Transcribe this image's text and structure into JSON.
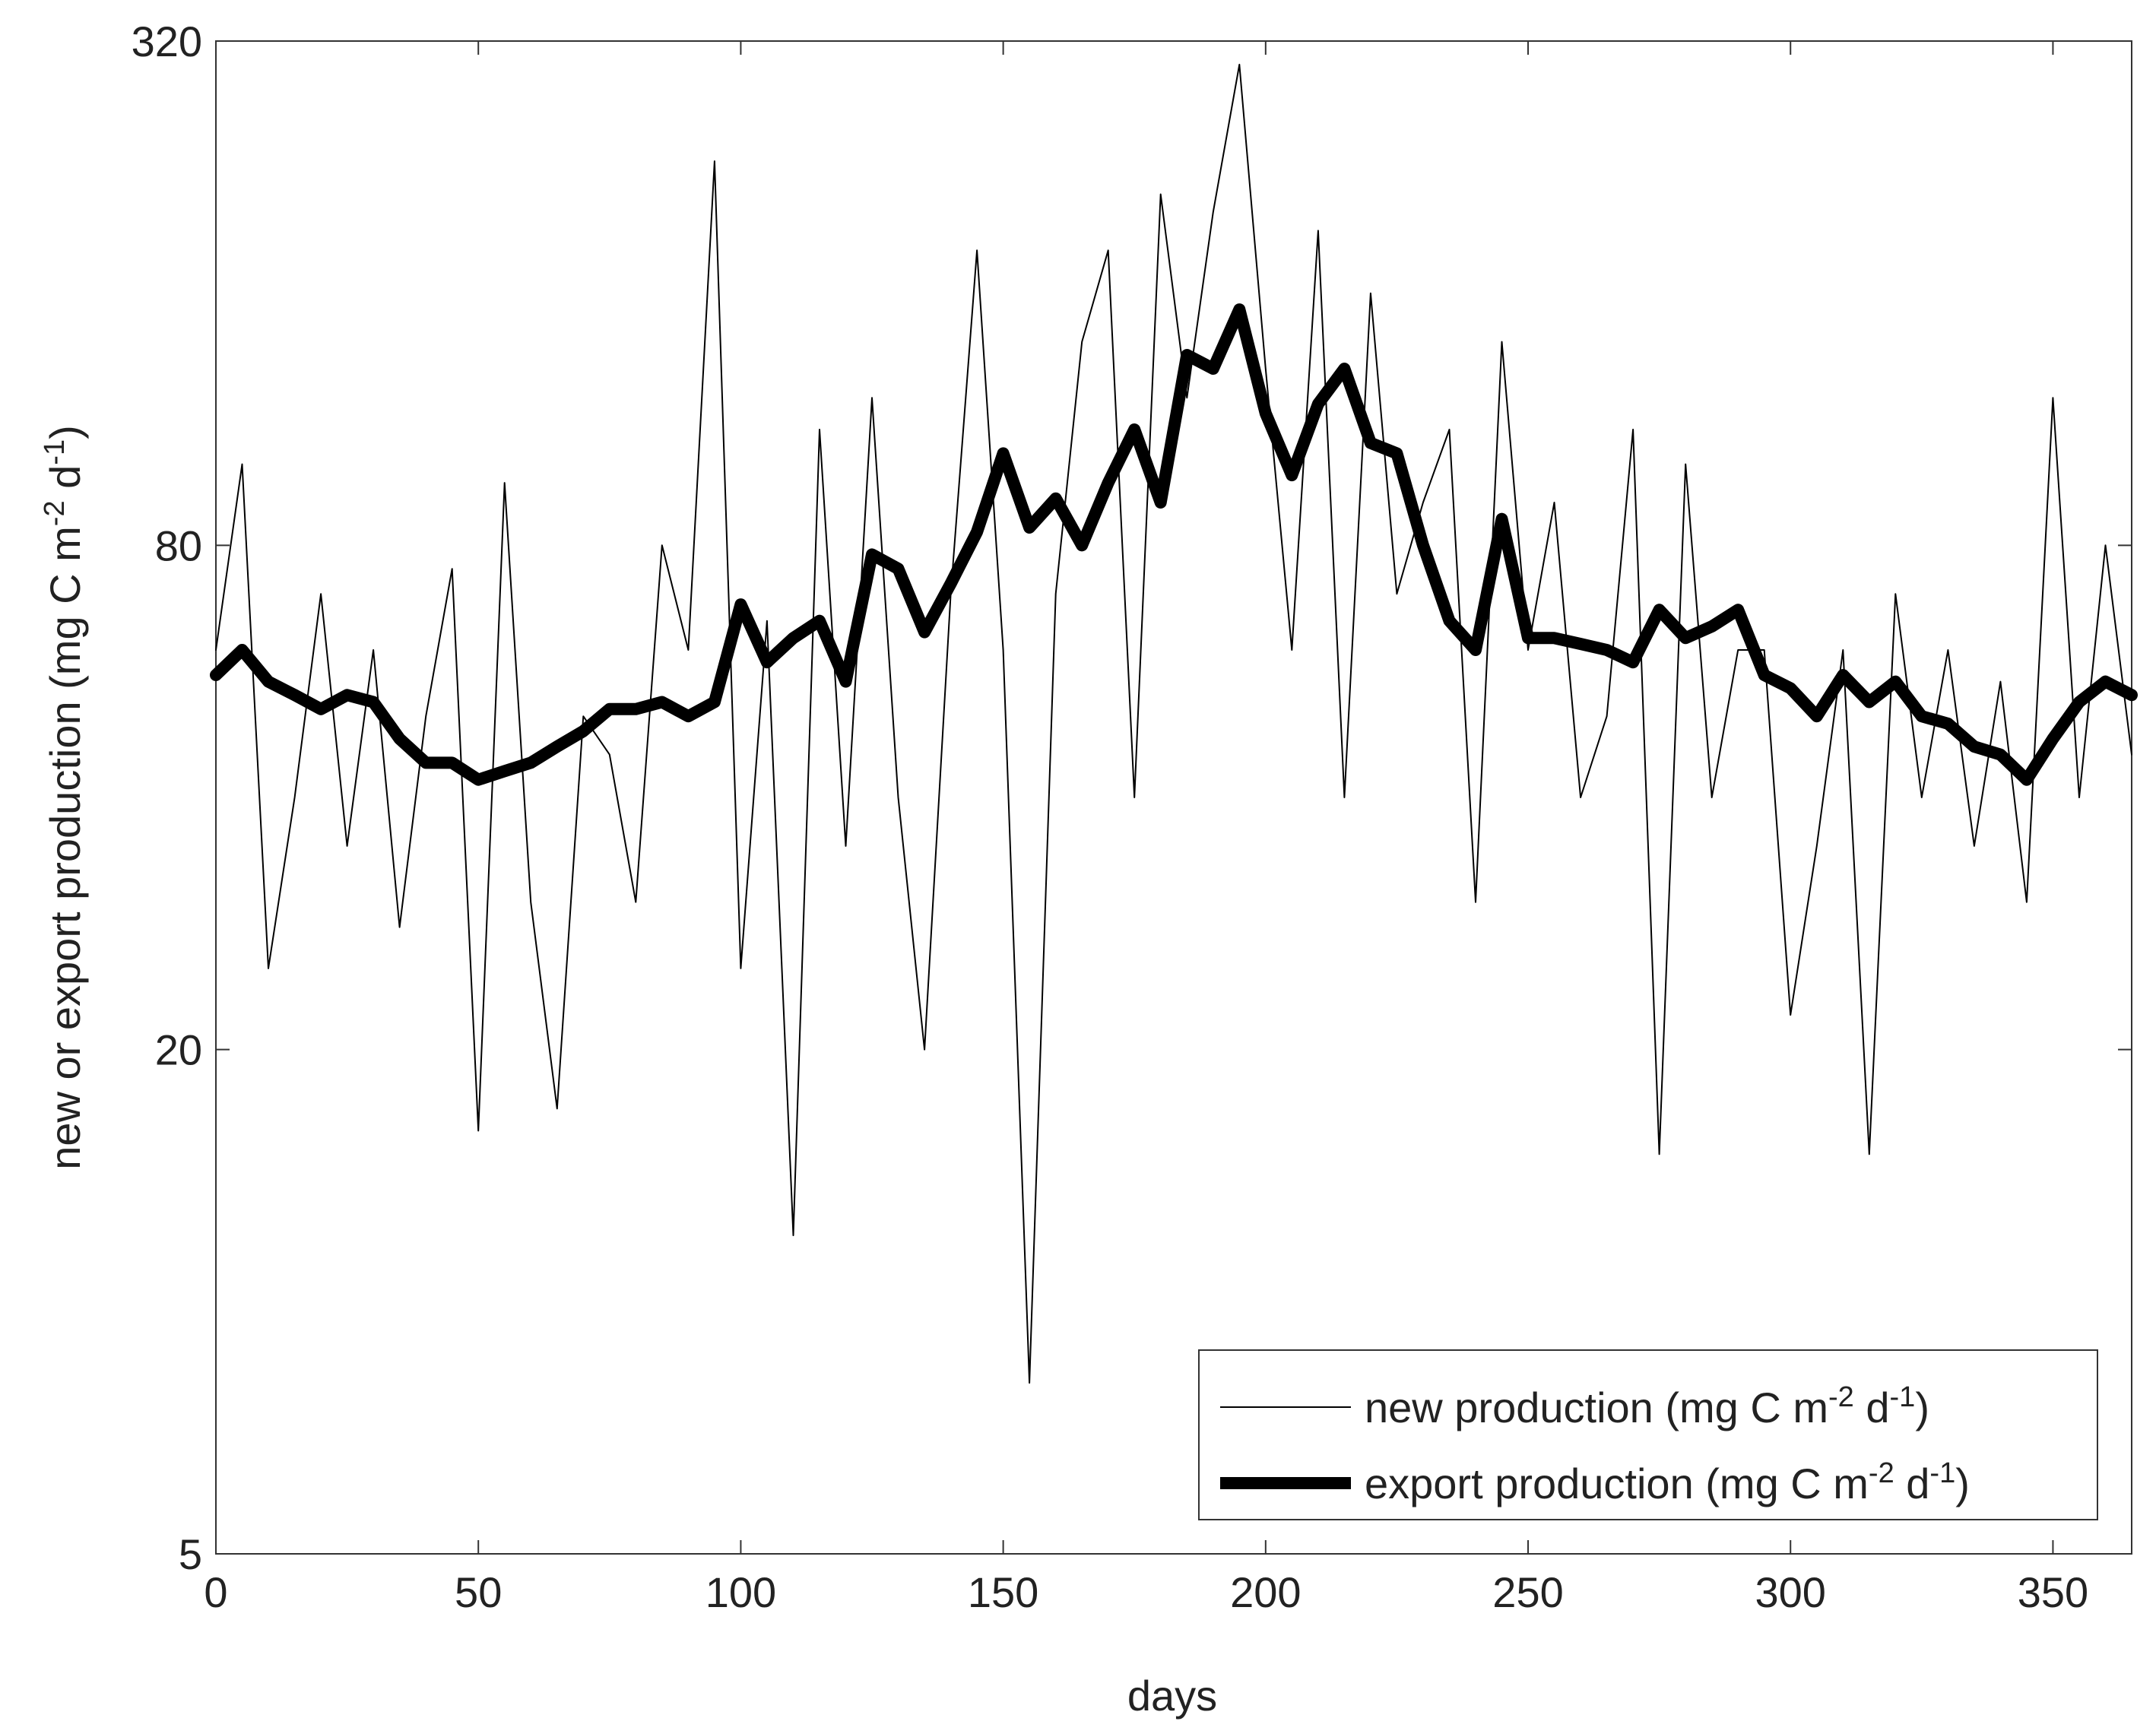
{
  "chart_data": {
    "type": "line",
    "xlabel": "days",
    "ylabel": "new or export production (mg C m-2 d-1)",
    "xlim": [
      0,
      365
    ],
    "xticks": [
      0,
      50,
      100,
      150,
      200,
      250,
      300,
      350
    ],
    "ylim": [
      5,
      320
    ],
    "yticks": [
      5,
      20,
      80,
      320
    ],
    "yscale": "log",
    "grid": false,
    "legend": "lower right",
    "x": [
      0,
      5,
      10,
      15,
      20,
      25,
      30,
      35,
      40,
      45,
      50,
      55,
      60,
      65,
      70,
      75,
      80,
      85,
      90,
      95,
      100,
      105,
      110,
      115,
      120,
      125,
      130,
      135,
      140,
      145,
      150,
      155,
      160,
      165,
      170,
      175,
      180,
      185,
      190,
      195,
      200,
      205,
      210,
      215,
      220,
      225,
      230,
      235,
      240,
      245,
      250,
      255,
      260,
      265,
      270,
      275,
      280,
      285,
      290,
      295,
      300,
      305,
      310,
      315,
      320,
      325,
      330,
      335,
      340,
      345,
      350,
      355,
      360,
      365
    ],
    "series": [
      {
        "name": "new production (mg C m-2 d-1)",
        "color": "#000000",
        "width": 2,
        "values": [
          60,
          100,
          25,
          40,
          70,
          35,
          60,
          28,
          50,
          75,
          16,
          95,
          30,
          17,
          50,
          45,
          30,
          80,
          60,
          230,
          25,
          65,
          12,
          110,
          35,
          120,
          40,
          20,
          70,
          180,
          60,
          8,
          70,
          140,
          180,
          40,
          210,
          120,
          200,
          300,
          130,
          60,
          190,
          40,
          160,
          70,
          90,
          110,
          30,
          140,
          60,
          90,
          40,
          50,
          110,
          15,
          100,
          40,
          60,
          60,
          22,
          35,
          60,
          15,
          70,
          40,
          60,
          35,
          55,
          30,
          120,
          40,
          80,
          45
        ]
      },
      {
        "name": "export production (mg C m-2 d-1)",
        "color": "#000000",
        "width": 16,
        "values": [
          56,
          60,
          55,
          53,
          51,
          53,
          52,
          47,
          44,
          44,
          42,
          43,
          44,
          46,
          48,
          51,
          51,
          52,
          50,
          52,
          68,
          58,
          62,
          65,
          55,
          78,
          75,
          63,
          72,
          83,
          103,
          84,
          91,
          80,
          95,
          110,
          90,
          135,
          130,
          153,
          115,
          97,
          118,
          130,
          106,
          103,
          80,
          65,
          60,
          86,
          62,
          62,
          61,
          60,
          58,
          67,
          62,
          64,
          67,
          56,
          54,
          50,
          56,
          52,
          55,
          50,
          49,
          46,
          45,
          42,
          47,
          52,
          55,
          53
        ]
      }
    ]
  }
}
